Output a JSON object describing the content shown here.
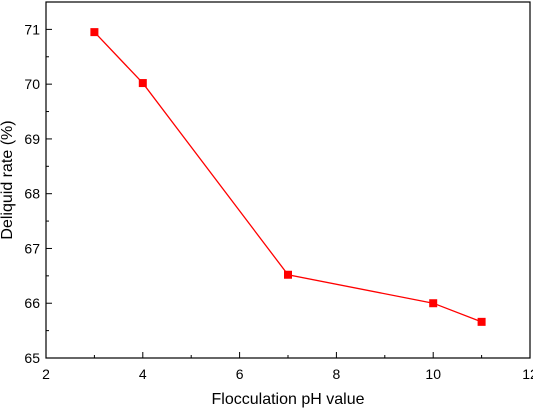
{
  "chart_data": {
    "type": "line",
    "title": "",
    "xlabel": "Flocculation pH value",
    "ylabel": "Deliquid rate (%)",
    "xlim": [
      2,
      12
    ],
    "ylim": [
      65,
      71.5
    ],
    "x_ticks": [
      2,
      4,
      6,
      8,
      10,
      12
    ],
    "y_ticks": [
      65,
      66,
      67,
      68,
      69,
      70,
      71
    ],
    "grid": false,
    "legend": "none",
    "series": [
      {
        "x": [
          3,
          4,
          7,
          10,
          11
        ],
        "y": [
          70.95,
          70.02,
          66.52,
          66.0,
          65.66
        ],
        "color": "#ff0000",
        "marker": "square"
      }
    ]
  }
}
